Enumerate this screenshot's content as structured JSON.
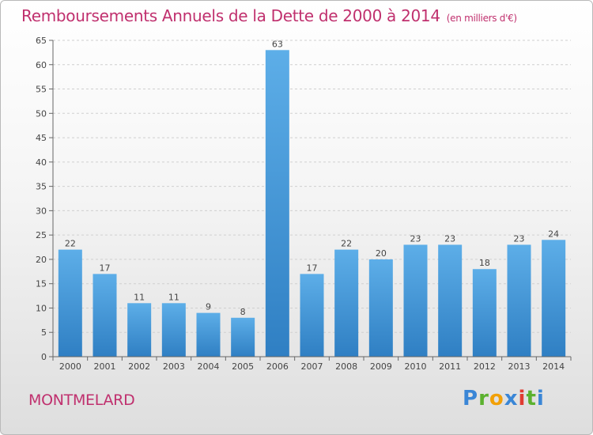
{
  "chart_data": {
    "type": "bar",
    "title": "Remboursements Annuels de la Dette de 2000 à 2014",
    "unit_note": "(en milliers d'€)",
    "categories": [
      "2000",
      "2001",
      "2002",
      "2003",
      "2004",
      "2005",
      "2006",
      "2007",
      "2008",
      "2009",
      "2010",
      "2011",
      "2012",
      "2013",
      "2014"
    ],
    "values": [
      22,
      17,
      11,
      11,
      9,
      8,
      63,
      17,
      22,
      20,
      23,
      23,
      18,
      23,
      24
    ],
    "ylim": [
      0,
      65
    ],
    "yticks": [
      0,
      5,
      10,
      15,
      20,
      25,
      30,
      35,
      40,
      45,
      50,
      55,
      60,
      65
    ],
    "grid": "horizontal dashed",
    "bar_color": "#4a9fe0"
  },
  "place_name": "MONTMELARD",
  "logo_text": "Proxiti",
  "logo_letters": [
    "P",
    "r",
    "o",
    "x",
    "i",
    "t",
    "i"
  ]
}
